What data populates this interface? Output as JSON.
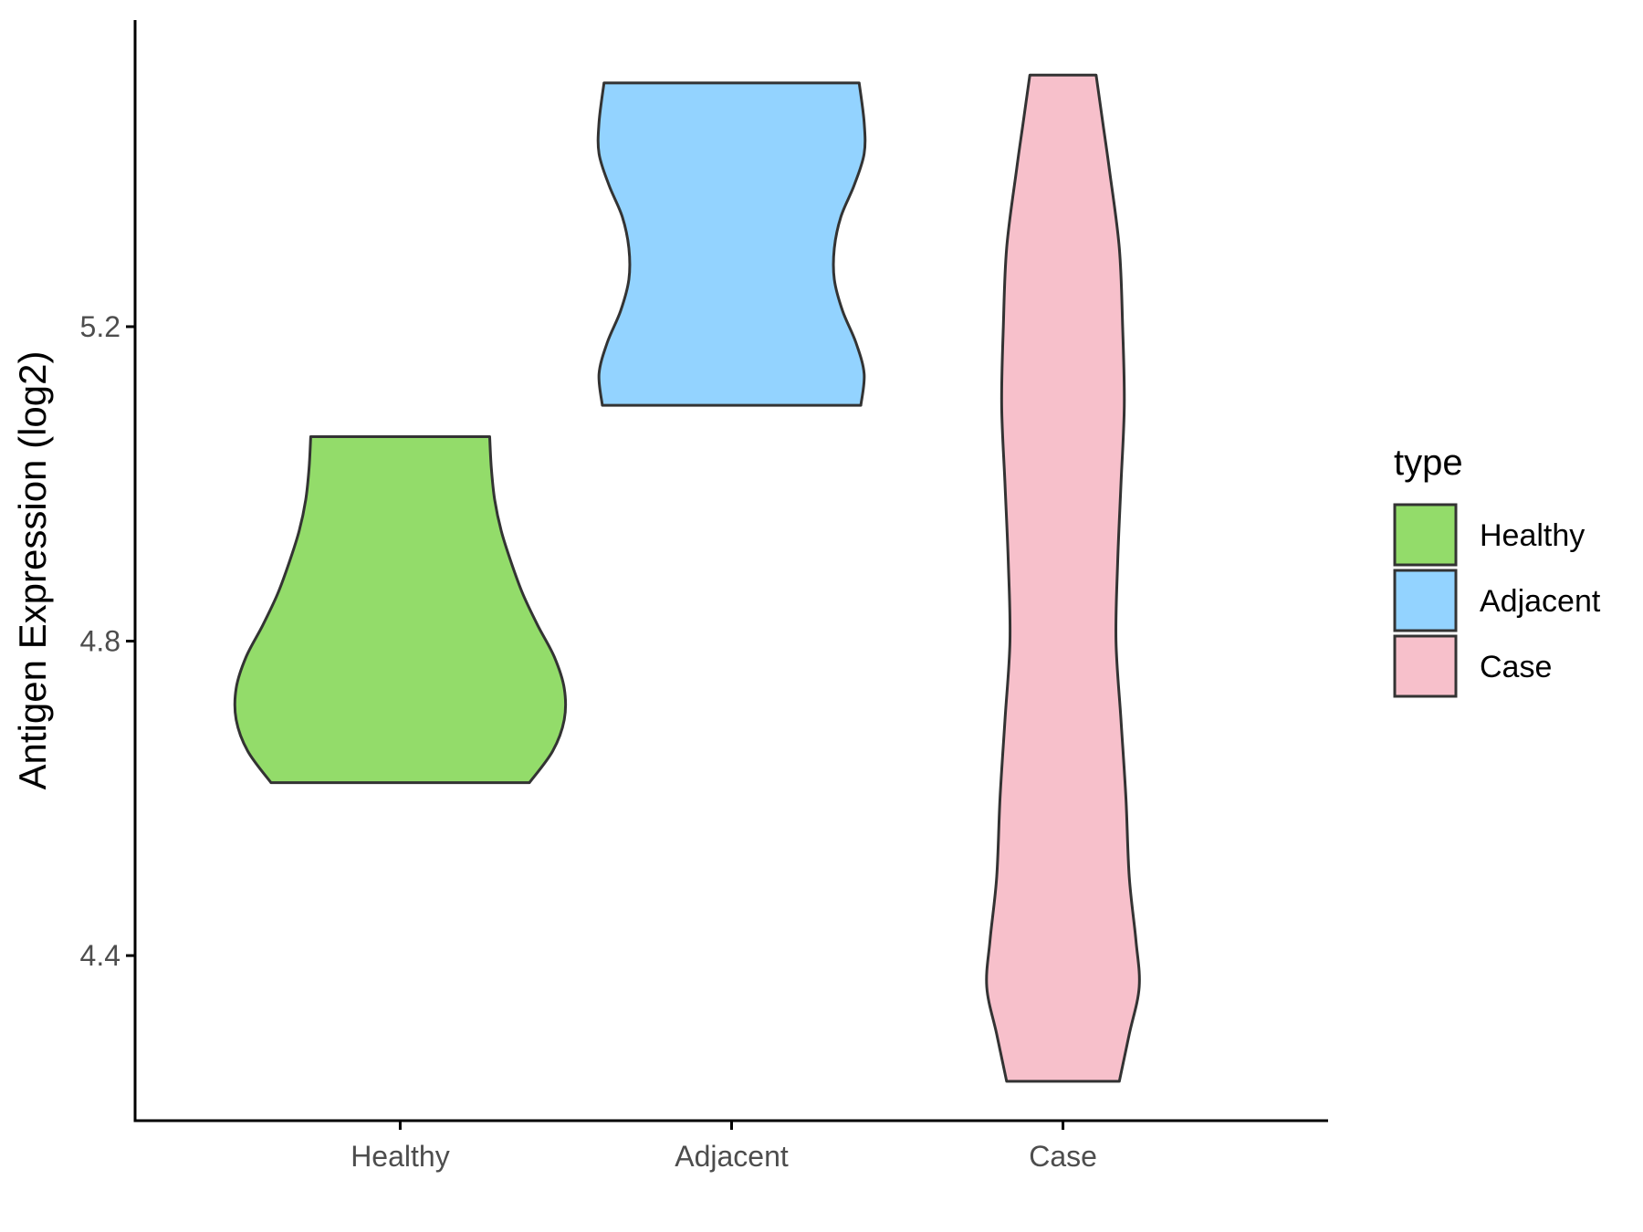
{
  "chart_data": {
    "type": "violin",
    "title": "",
    "xlabel": "",
    "ylabel": "Antigen Expression (log2)",
    "ylim": [
      4.19,
      5.59
    ],
    "yticks": [
      "4.4",
      "4.8",
      "5.2"
    ],
    "categories": [
      "Healthy",
      "Adjacent",
      "Case"
    ],
    "grid": false,
    "legend": {
      "title": "type",
      "position": "right",
      "entries": [
        "Healthy",
        "Adjacent",
        "Case"
      ]
    },
    "series": [
      {
        "name": "Healthy",
        "color": "#93dc6a",
        "min": 4.62,
        "max": 5.06,
        "profile": [
          [
            4.62,
            0.78
          ],
          [
            4.66,
            0.92
          ],
          [
            4.7,
            0.99
          ],
          [
            4.74,
            0.99
          ],
          [
            4.78,
            0.93
          ],
          [
            4.82,
            0.83
          ],
          [
            4.86,
            0.74
          ],
          [
            4.9,
            0.67
          ],
          [
            4.94,
            0.61
          ],
          [
            4.98,
            0.57
          ],
          [
            5.02,
            0.55
          ],
          [
            5.06,
            0.54
          ]
        ]
      },
      {
        "name": "Adjacent",
        "color": "#93d3ff",
        "min": 5.1,
        "max": 5.51,
        "profile": [
          [
            5.1,
            0.78
          ],
          [
            5.14,
            0.8
          ],
          [
            5.18,
            0.75
          ],
          [
            5.22,
            0.67
          ],
          [
            5.26,
            0.62
          ],
          [
            5.3,
            0.62
          ],
          [
            5.34,
            0.66
          ],
          [
            5.38,
            0.74
          ],
          [
            5.42,
            0.8
          ],
          [
            5.46,
            0.8
          ],
          [
            5.51,
            0.77
          ]
        ]
      },
      {
        "name": "Case",
        "color": "#f7c0cb",
        "min": 4.24,
        "max": 5.52,
        "profile": [
          [
            4.24,
            0.34
          ],
          [
            4.3,
            0.4
          ],
          [
            4.36,
            0.46
          ],
          [
            4.42,
            0.44
          ],
          [
            4.5,
            0.4
          ],
          [
            4.6,
            0.38
          ],
          [
            4.7,
            0.35
          ],
          [
            4.8,
            0.32
          ],
          [
            4.9,
            0.33
          ],
          [
            5.0,
            0.35
          ],
          [
            5.1,
            0.37
          ],
          [
            5.2,
            0.36
          ],
          [
            5.3,
            0.34
          ],
          [
            5.4,
            0.28
          ],
          [
            5.46,
            0.24
          ],
          [
            5.52,
            0.2
          ]
        ]
      }
    ]
  }
}
